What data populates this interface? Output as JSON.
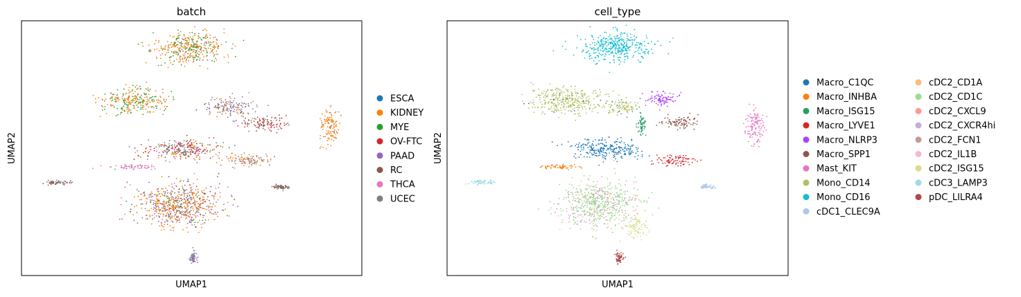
{
  "chart_data": [
    {
      "type": "scatter",
      "title": "batch",
      "xlabel": "UMAP1",
      "ylabel": "UMAP2",
      "grid": false,
      "ticks": false,
      "legend_position": "right",
      "legend": [
        {
          "name": "ESCA",
          "color": "#1f77b4"
        },
        {
          "name": "KIDNEY",
          "color": "#ff7f0e"
        },
        {
          "name": "MYE",
          "color": "#2ca02c"
        },
        {
          "name": "OV-FTC",
          "color": "#d62728"
        },
        {
          "name": "PAAD",
          "color": "#9467bd"
        },
        {
          "name": "RC",
          "color": "#8c564b"
        },
        {
          "name": "THCA",
          "color": "#e377c2"
        },
        {
          "name": "UCEC",
          "color": "#7f7f7f"
        }
      ],
      "clusters": [
        {
          "name": "top",
          "center": [
            4.9,
            9.2
          ],
          "spread": [
            1.1,
            0.7
          ],
          "mix": {
            "KIDNEY": 0.6,
            "MYE": 0.3,
            "PAAD": 0.05,
            "UCEC": 0.05
          }
        },
        {
          "name": "upper-left",
          "center": [
            3.2,
            6.8
          ],
          "spread": [
            1.0,
            0.55
          ],
          "mix": {
            "KIDNEY": 0.55,
            "MYE": 0.4,
            "UCEC": 0.05
          }
        },
        {
          "name": "upper-mid",
          "center": [
            6.1,
            6.5
          ],
          "spread": [
            0.8,
            0.4
          ],
          "mix": {
            "UCEC": 0.55,
            "PAAD": 0.3,
            "KIDNEY": 0.15
          }
        },
        {
          "name": "mid-right",
          "center": [
            7.2,
            5.8
          ],
          "spread": [
            0.7,
            0.3
          ],
          "mix": {
            "RC": 0.5,
            "OV-FTC": 0.35,
            "UCEC": 0.15
          }
        },
        {
          "name": "center",
          "center": [
            4.7,
            4.6
          ],
          "spread": [
            1.2,
            0.45
          ],
          "mix": {
            "OV-FTC": 0.35,
            "PAAD": 0.25,
            "MYE": 0.15,
            "KIDNEY": 0.2,
            "UCEC": 0.05
          }
        },
        {
          "name": "center-right",
          "center": [
            6.7,
            4.1
          ],
          "spread": [
            0.8,
            0.25
          ],
          "mix": {
            "KIDNEY": 0.6,
            "UCEC": 0.3,
            "PAAD": 0.1
          }
        },
        {
          "name": "left-pink",
          "center": [
            3.1,
            3.8
          ],
          "spread": [
            0.7,
            0.12
          ],
          "mix": {
            "THCA": 0.85,
            "UCEC": 0.15
          }
        },
        {
          "name": "lower",
          "center": [
            4.5,
            2.1
          ],
          "spread": [
            1.3,
            1.0
          ],
          "mix": {
            "KIDNEY": 0.45,
            "PAAD": 0.15,
            "RC": 0.15,
            "UCEC": 0.15,
            "MYE": 0.05,
            "THCA": 0.05
          }
        },
        {
          "name": "bottom-small",
          "center": [
            5.0,
            -0.3
          ],
          "spread": [
            0.12,
            0.25
          ],
          "mix": {
            "UCEC": 0.5,
            "PAAD": 0.5
          }
        },
        {
          "name": "far-left",
          "center": [
            0.8,
            3.1
          ],
          "spread": [
            0.4,
            0.1
          ],
          "mix": {
            "RC": 0.6,
            "UCEC": 0.4
          }
        },
        {
          "name": "small-right",
          "center": [
            7.7,
            2.9
          ],
          "spread": [
            0.22,
            0.1
          ],
          "mix": {
            "RC": 0.5,
            "UCEC": 0.5
          }
        },
        {
          "name": "far-right-plume",
          "center": [
            9.2,
            5.6
          ],
          "spread": [
            0.3,
            0.8
          ],
          "mix": {
            "KIDNEY": 0.85,
            "UCEC": 0.15
          }
        }
      ]
    },
    {
      "type": "scatter",
      "title": "cell_type",
      "xlabel": "UMAP1",
      "ylabel": "UMAP2",
      "grid": false,
      "ticks": false,
      "legend_position": "right",
      "legend_columns": 2,
      "legend": [
        {
          "name": "Macro_C1QC",
          "color": "#1f77b4"
        },
        {
          "name": "Macro_INHBA",
          "color": "#ff7f0e"
        },
        {
          "name": "Macro_ISG15",
          "color": "#279e68"
        },
        {
          "name": "Macro_LYVE1",
          "color": "#d62728"
        },
        {
          "name": "Macro_NLRP3",
          "color": "#aa40fc"
        },
        {
          "name": "Macro_SPP1",
          "color": "#8c564b"
        },
        {
          "name": "Mast_KIT",
          "color": "#e377c2"
        },
        {
          "name": "Mono_CD14",
          "color": "#b5bd61"
        },
        {
          "name": "Mono_CD16",
          "color": "#17becf"
        },
        {
          "name": "cDC1_CLEC9A",
          "color": "#aec7e8"
        },
        {
          "name": "cDC2_CD1A",
          "color": "#ffbb78"
        },
        {
          "name": "cDC2_CD1C",
          "color": "#98df8a"
        },
        {
          "name": "cDC2_CXCL9",
          "color": "#ff9896"
        },
        {
          "name": "cDC2_CXCR4hi",
          "color": "#c5b0d5"
        },
        {
          "name": "cDC2_FCN1",
          "color": "#c49c94"
        },
        {
          "name": "cDC2_IL1B",
          "color": "#f7b6d2"
        },
        {
          "name": "cDC2_ISG15",
          "color": "#dbdb8d"
        },
        {
          "name": "cDC3_LAMP3",
          "color": "#9edae5"
        },
        {
          "name": "pDC_LILRA4",
          "color": "#ad494a"
        }
      ],
      "clusters": [
        {
          "name": "top",
          "center": [
            4.9,
            9.2
          ],
          "spread": [
            1.1,
            0.7
          ],
          "mix": {
            "Mono_CD16": 1.0
          }
        },
        {
          "name": "upper-left",
          "center": [
            3.4,
            6.8
          ],
          "spread": [
            1.1,
            0.6
          ],
          "mix": {
            "Mono_CD14": 0.97,
            "Macro_C1QC": 0.03
          }
        },
        {
          "name": "upper-mid",
          "center": [
            5.1,
            6.5
          ],
          "spread": [
            0.5,
            0.35
          ],
          "mix": {
            "Mono_CD14": 0.9,
            "Macro_ISG15": 0.1
          }
        },
        {
          "name": "nlrp3",
          "center": [
            6.3,
            6.9
          ],
          "spread": [
            0.5,
            0.35
          ],
          "mix": {
            "Macro_NLRP3": 1.0
          }
        },
        {
          "name": "isg15-strip",
          "center": [
            5.7,
            5.7
          ],
          "spread": [
            0.12,
            0.45
          ],
          "mix": {
            "Macro_ISG15": 1.0
          }
        },
        {
          "name": "spp1",
          "center": [
            6.9,
            5.8
          ],
          "spread": [
            0.6,
            0.3
          ],
          "mix": {
            "Macro_SPP1": 1.0
          }
        },
        {
          "name": "c1qc",
          "center": [
            4.6,
            4.6
          ],
          "spread": [
            1.1,
            0.45
          ],
          "mix": {
            "Macro_C1QC": 1.0
          }
        },
        {
          "name": "lyve1",
          "center": [
            6.8,
            4.1
          ],
          "spread": [
            0.7,
            0.25
          ],
          "mix": {
            "Macro_LYVE1": 1.0
          }
        },
        {
          "name": "inhba",
          "center": [
            3.1,
            3.8
          ],
          "spread": [
            0.6,
            0.1
          ],
          "mix": {
            "Macro_INHBA": 1.0
          }
        },
        {
          "name": "lower",
          "center": [
            4.4,
            2.1
          ],
          "spread": [
            1.2,
            1.0
          ],
          "mix": {
            "cDC2_CD1C": 0.55,
            "cDC2_CXCR4hi": 0.2,
            "cDC2_FCN1": 0.1,
            "cDC2_CXCL9": 0.05,
            "cDC2_IL1B": 0.05,
            "cDC2_CD1A": 0.05
          }
        },
        {
          "name": "lower-right",
          "center": [
            5.5,
            1.0
          ],
          "spread": [
            0.4,
            0.4
          ],
          "mix": {
            "cDC2_ISG15": 1.0
          }
        },
        {
          "name": "pdc",
          "center": [
            5.0,
            -0.3
          ],
          "spread": [
            0.12,
            0.25
          ],
          "mix": {
            "pDC_LILRA4": 1.0
          }
        },
        {
          "name": "lamp3",
          "center": [
            0.8,
            3.1
          ],
          "spread": [
            0.4,
            0.1
          ],
          "mix": {
            "cDC3_LAMP3": 1.0
          }
        },
        {
          "name": "clec9a",
          "center": [
            7.7,
            2.9
          ],
          "spread": [
            0.22,
            0.1
          ],
          "mix": {
            "cDC1_CLEC9A": 1.0
          }
        },
        {
          "name": "mast",
          "center": [
            9.2,
            5.6
          ],
          "spread": [
            0.3,
            0.8
          ],
          "mix": {
            "Mast_KIT": 1.0
          }
        }
      ]
    }
  ]
}
